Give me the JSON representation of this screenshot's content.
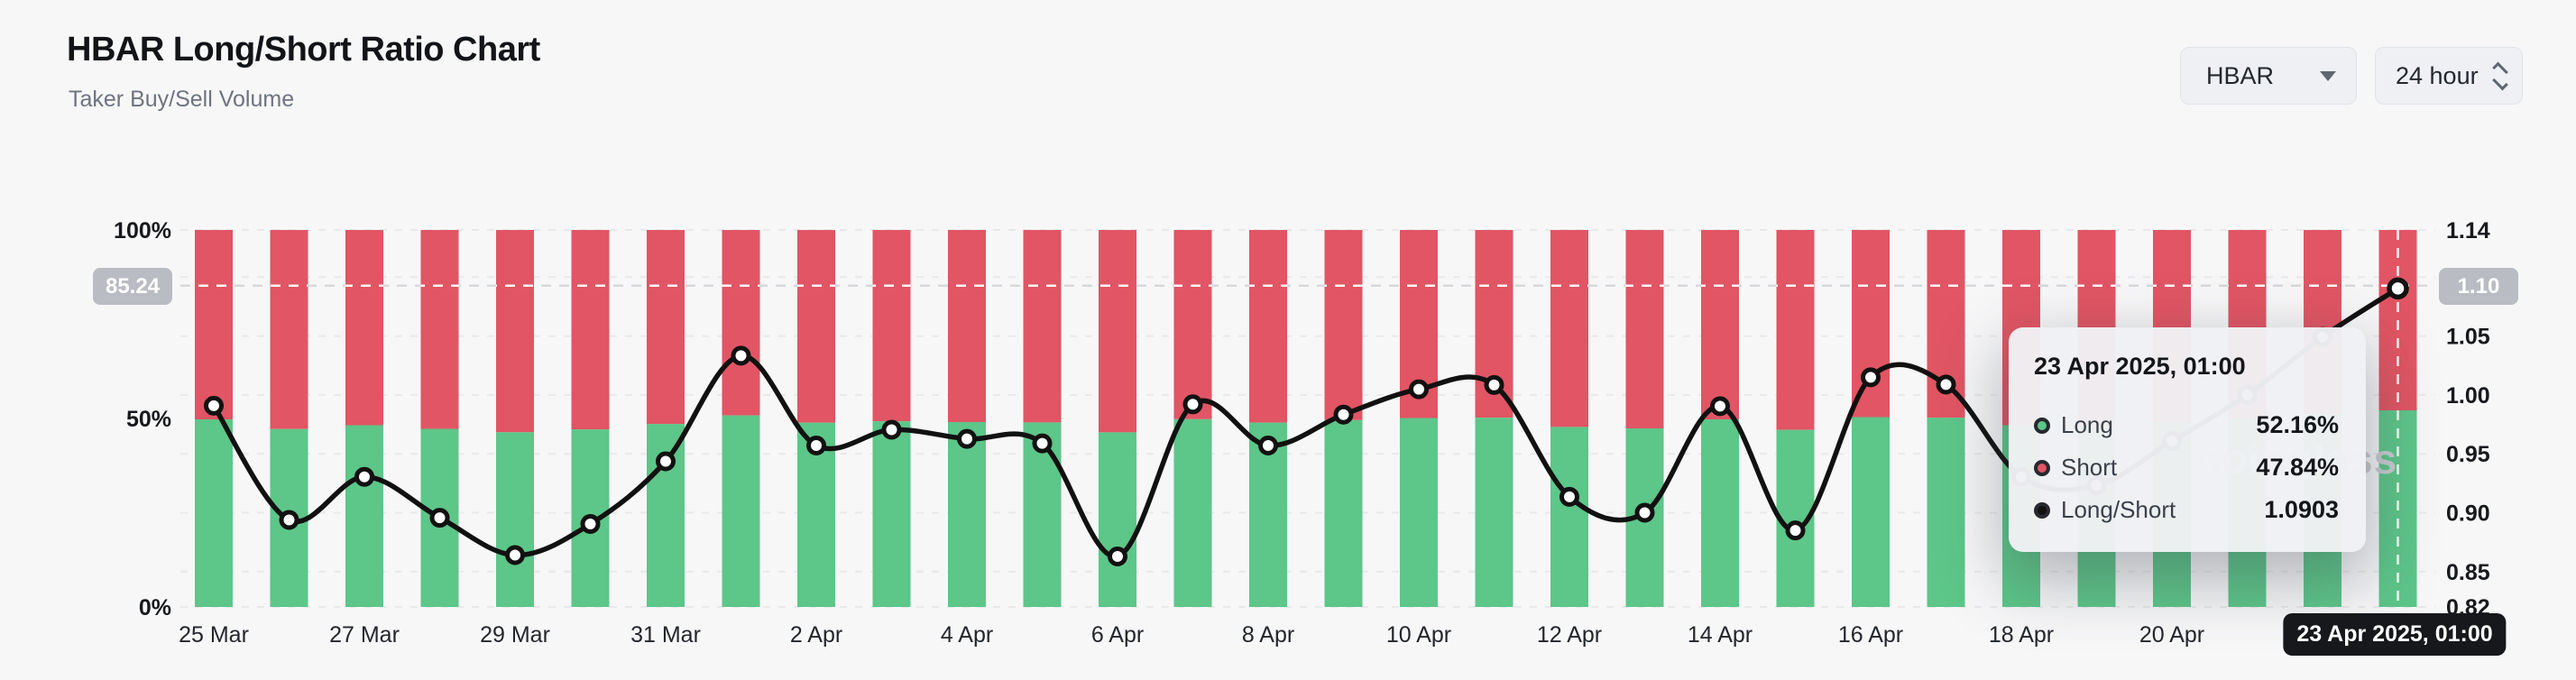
{
  "header": {
    "title": "HBAR Long/Short Ratio Chart",
    "subtitle": "Taker Buy/Sell Volume"
  },
  "controls": {
    "symbol": {
      "value": "HBAR"
    },
    "interval": {
      "value": "24 hour"
    }
  },
  "watermark": "coinglass",
  "colors": {
    "long": "#5dc689",
    "short": "#e15564",
    "ratio_line": "#111111",
    "background": "#f7f7f8",
    "grid": "#e9e9ec",
    "crosshair": "#ffffff",
    "badge_gray": "#b9bcc3"
  },
  "chart_data": {
    "type": "bar+line",
    "title": "HBAR Long/Short Ratio Chart",
    "categories": [
      "25 Mar",
      "26 Mar",
      "27 Mar",
      "28 Mar",
      "29 Mar",
      "30 Mar",
      "31 Mar",
      "1 Apr",
      "2 Apr",
      "3 Apr",
      "4 Apr",
      "5 Apr",
      "6 Apr",
      "7 Apr",
      "8 Apr",
      "9 Apr",
      "10 Apr",
      "11 Apr",
      "12 Apr",
      "13 Apr",
      "14 Apr",
      "15 Apr",
      "16 Apr",
      "17 Apr",
      "18 Apr",
      "19 Apr",
      "20 Apr",
      "21 Apr",
      "22 Apr",
      "23 Apr"
    ],
    "x_label_every": 2,
    "series": [
      {
        "name": "Long",
        "type": "bar",
        "stack": true,
        "axis": "left",
        "unit": "%",
        "color": "#5dc689",
        "values": [
          49.77,
          47.2,
          48.2,
          47.25,
          46.35,
          47.1,
          48.55,
          50.82,
          48.9,
          49.25,
          49.05,
          48.95,
          46.32,
          49.8,
          48.9,
          49.58,
          50.12,
          50.21,
          47.74,
          47.37,
          49.76,
          46.95,
          50.37,
          50.22,
          48.2,
          48.0,
          49.0,
          50.0,
          51.2,
          52.16
        ]
      },
      {
        "name": "Short",
        "type": "bar",
        "stack": true,
        "axis": "left",
        "unit": "%",
        "color": "#e15564",
        "values": [
          50.23,
          52.8,
          51.8,
          52.75,
          53.65,
          52.9,
          51.45,
          49.18,
          51.1,
          50.75,
          50.95,
          51.05,
          53.68,
          50.2,
          51.1,
          50.42,
          49.88,
          49.79,
          52.26,
          52.63,
          50.24,
          53.05,
          49.63,
          49.78,
          51.8,
          52.0,
          51.0,
          50.0,
          48.8,
          47.84
        ]
      },
      {
        "name": "Long/Short",
        "type": "line",
        "axis": "right",
        "color": "#111111",
        "values": [
          0.9908,
          0.8939,
          0.9305,
          0.8957,
          0.864,
          0.8904,
          0.9436,
          1.0333,
          0.957,
          0.9704,
          0.9627,
          0.9589,
          0.8629,
          0.992,
          0.957,
          0.9833,
          1.0048,
          1.0084,
          0.9135,
          0.9,
          0.9904,
          0.885,
          1.0149,
          1.0088,
          0.9305,
          0.9231,
          0.9608,
          1.0,
          1.0492,
          1.0903
        ]
      }
    ],
    "left_axis": {
      "ticks": [
        "100%",
        "50%",
        "0%"
      ],
      "range": [
        0,
        100
      ]
    },
    "right_axis": {
      "ticks": [
        "1.14",
        "1.10",
        "1.05",
        "1.00",
        "0.95",
        "0.90",
        "0.85",
        "0.82"
      ],
      "range": [
        0.82,
        1.14
      ]
    },
    "grid": true,
    "legend_position": "none"
  },
  "crosshair": {
    "h_value_pct": 85.24,
    "left_badge": "85.24",
    "right_badge": "1.10",
    "point_index": 29,
    "date_badge": "23 Apr 2025, 01:00"
  },
  "tooltip": {
    "title": "23 Apr 2025, 01:00",
    "rows": [
      {
        "label": "Long",
        "value": "52.16%",
        "color": "#5dc689"
      },
      {
        "label": "Short",
        "value": "47.84%",
        "color": "#e15564"
      },
      {
        "label": "Long/Short",
        "value": "1.0903",
        "color": "#111111"
      }
    ]
  }
}
